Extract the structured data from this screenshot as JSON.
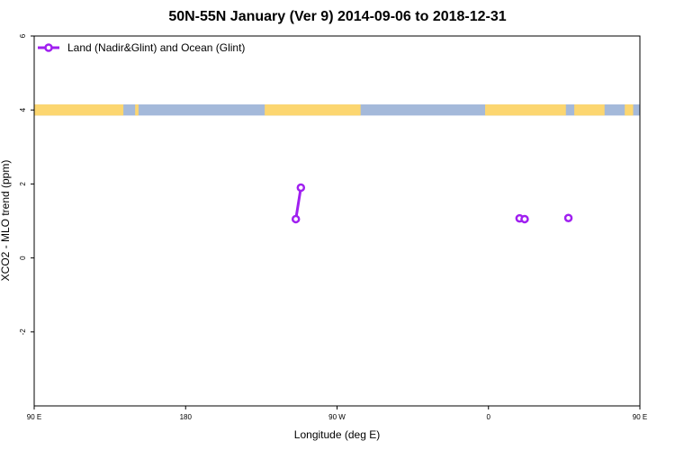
{
  "chart_data": {
    "type": "line",
    "title": "50N-55N January (Ver 9)   2014-09-06 to 2018-12-31",
    "xlabel": "Longitude (deg E)",
    "ylabel": "XCO2 - MLO trend (ppm)",
    "xlim": [
      90,
      450
    ],
    "ylim": [
      -4,
      6
    ],
    "x_ticks": [
      {
        "value": 90,
        "label": "90 E"
      },
      {
        "value": 180,
        "label": "180"
      },
      {
        "value": 270,
        "label": "90 W"
      },
      {
        "value": 360,
        "label": "0"
      },
      {
        "value": 450,
        "label": "90 E"
      },
      {
        "value": 540,
        "label": "180"
      }
    ],
    "y_ticks": [
      {
        "value": -2,
        "label": "-2"
      },
      {
        "value": 0,
        "label": "0"
      },
      {
        "value": 2,
        "label": "2"
      },
      {
        "value": 4,
        "label": "4"
      },
      {
        "value": 6,
        "label": "6"
      }
    ],
    "legend": {
      "position": "top-left"
    },
    "series": [
      {
        "name": "Land (Nadir&Glint) and Ocean (Glint)",
        "color": "#a020f0",
        "points": [
          {
            "x": 245.5,
            "y": 1.05
          },
          {
            "x": 248.5,
            "y": 1.9
          },
          {
            "x": 378.5,
            "y": 1.07
          },
          {
            "x": 381.5,
            "y": 1.05
          },
          {
            "x": 407.5,
            "y": 1.08
          }
        ],
        "segments": [
          [
            0,
            1
          ]
        ]
      }
    ],
    "landmask": {
      "y_range": [
        3.85,
        4.15
      ],
      "land_color": "#fcd670",
      "ocean_color": "#a4b9da",
      "land_spans": [
        [
          90,
          143
        ],
        [
          150,
          152
        ],
        [
          227,
          284
        ],
        [
          358,
          406
        ],
        [
          411,
          429
        ],
        [
          441,
          446
        ]
      ]
    }
  }
}
